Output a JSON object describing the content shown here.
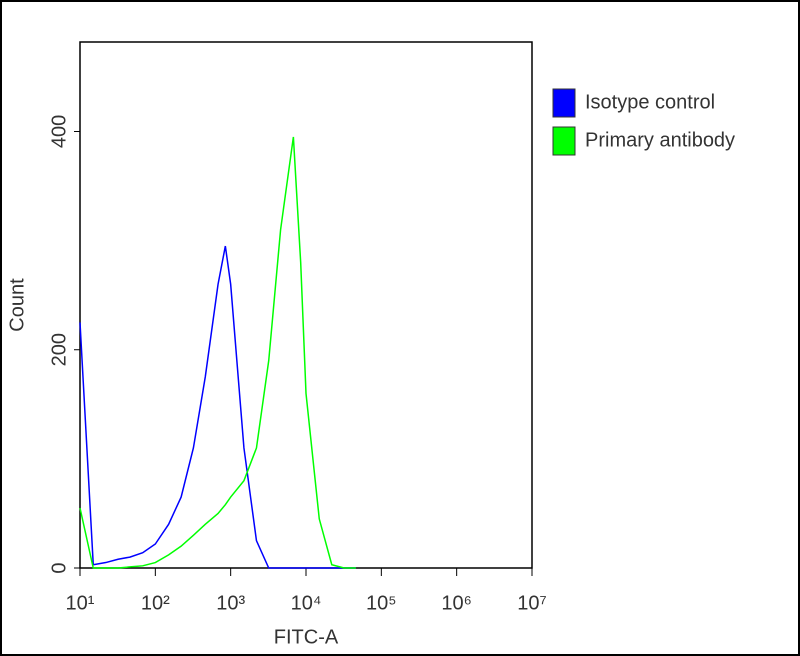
{
  "chart_data": {
    "type": "line",
    "x_label": "FITC-A",
    "y_label": "Count",
    "xscale": "log",
    "x": [
      10,
      15,
      22,
      32,
      46,
      68,
      100,
      150,
      220,
      320,
      460,
      680,
      850,
      1000,
      1500,
      2200,
      3200,
      4600,
      6800,
      8500,
      10000,
      15000,
      22000,
      32000,
      46000
    ],
    "series": [
      {
        "name": "Isotype control",
        "color": "#0000ff",
        "values": [
          225,
          3,
          5,
          8,
          10,
          14,
          22,
          40,
          65,
          110,
          175,
          260,
          295,
          260,
          110,
          25,
          0,
          0,
          0,
          0,
          0,
          0,
          0,
          0,
          0
        ]
      },
      {
        "name": "Primary antibody",
        "color": "#00ff00",
        "values": [
          55,
          0,
          0,
          0,
          1,
          2,
          5,
          12,
          20,
          30,
          40,
          50,
          58,
          65,
          80,
          110,
          190,
          310,
          395,
          280,
          160,
          45,
          3,
          0,
          0
        ]
      }
    ],
    "xlim": [
      10,
      10000000
    ],
    "xticks": [
      {
        "value": 10,
        "label": "10¹"
      },
      {
        "value": 100,
        "label": "10²"
      },
      {
        "value": 1000,
        "label": "10³"
      },
      {
        "value": 10000,
        "label": "10⁴"
      },
      {
        "value": 100000,
        "label": "10⁵"
      },
      {
        "value": 1000000,
        "label": "10⁶"
      },
      {
        "value": 10000000,
        "label": "10⁷"
      }
    ],
    "ylim": [
      0,
      482
    ],
    "yticks": [
      0,
      200,
      400
    ],
    "legend": "right"
  }
}
